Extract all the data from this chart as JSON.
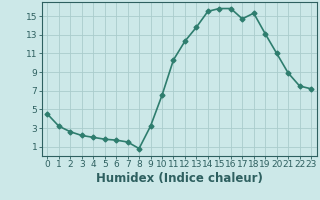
{
  "x": [
    0,
    1,
    2,
    3,
    4,
    5,
    6,
    7,
    8,
    9,
    10,
    11,
    12,
    13,
    14,
    15,
    16,
    17,
    18,
    19,
    20,
    21,
    22,
    23
  ],
  "y": [
    4.5,
    3.2,
    2.6,
    2.2,
    2.0,
    1.8,
    1.7,
    1.5,
    0.8,
    3.2,
    6.5,
    10.3,
    12.3,
    13.8,
    15.5,
    15.8,
    15.8,
    14.7,
    15.3,
    13.1,
    11.0,
    8.9,
    7.5,
    7.2
  ],
  "line_color": "#2e7d6e",
  "marker": "D",
  "marker_size": 2.5,
  "line_width": 1.2,
  "bg_color": "#cce8e8",
  "grid_color": "#aacccc",
  "xlabel": "Humidex (Indice chaleur)",
  "xlim": [
    -0.5,
    23.5
  ],
  "ylim": [
    0,
    16.5
  ],
  "yticks": [
    1,
    3,
    5,
    7,
    9,
    11,
    13,
    15
  ],
  "xticks": [
    0,
    1,
    2,
    3,
    4,
    5,
    6,
    7,
    8,
    9,
    10,
    11,
    12,
    13,
    14,
    15,
    16,
    17,
    18,
    19,
    20,
    21,
    22,
    23
  ],
  "xtick_labels": [
    "0",
    "1",
    "2",
    "3",
    "4",
    "5",
    "6",
    "7",
    "8",
    "9",
    "10",
    "11",
    "12",
    "13",
    "14",
    "15",
    "16",
    "17",
    "18",
    "19",
    "20",
    "21",
    "22",
    "23"
  ],
  "tick_fontsize": 6.5,
  "xlabel_fontsize": 8.5,
  "axis_color": "#2e6060"
}
